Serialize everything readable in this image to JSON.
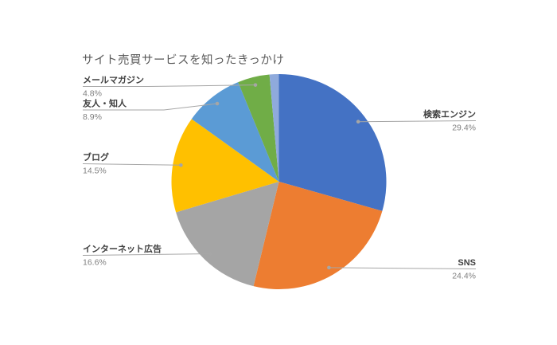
{
  "chart_data": {
    "type": "pie",
    "title": "サイト売買サービスを知ったきっかけ",
    "unit": "%",
    "legend_position": "none",
    "label_style": "callout with category name and percentage",
    "start_angle_deg": 0,
    "direction": "clockwise",
    "background_color": "#ffffff",
    "slices": [
      {
        "label": "検索エンジン",
        "value": 29.4,
        "pct_label": "29.4%",
        "color": "#4472C4"
      },
      {
        "label": "SNS",
        "value": 24.4,
        "pct_label": "24.4%",
        "color": "#ED7D31"
      },
      {
        "label": "インターネット広告",
        "value": 16.6,
        "pct_label": "16.6%",
        "color": "#A5A5A5"
      },
      {
        "label": "ブログ",
        "value": 14.5,
        "pct_label": "14.5%",
        "color": "#FFC000"
      },
      {
        "label": "友人・知人",
        "value": 8.9,
        "pct_label": "8.9%",
        "color": "#5B9BD5"
      },
      {
        "label": "メールマガジン",
        "value": 4.8,
        "pct_label": "4.8%",
        "color": "#70AD47"
      },
      {
        "label": "",
        "value": 1.4,
        "pct_label": "",
        "color": "#8FAADC"
      }
    ]
  }
}
